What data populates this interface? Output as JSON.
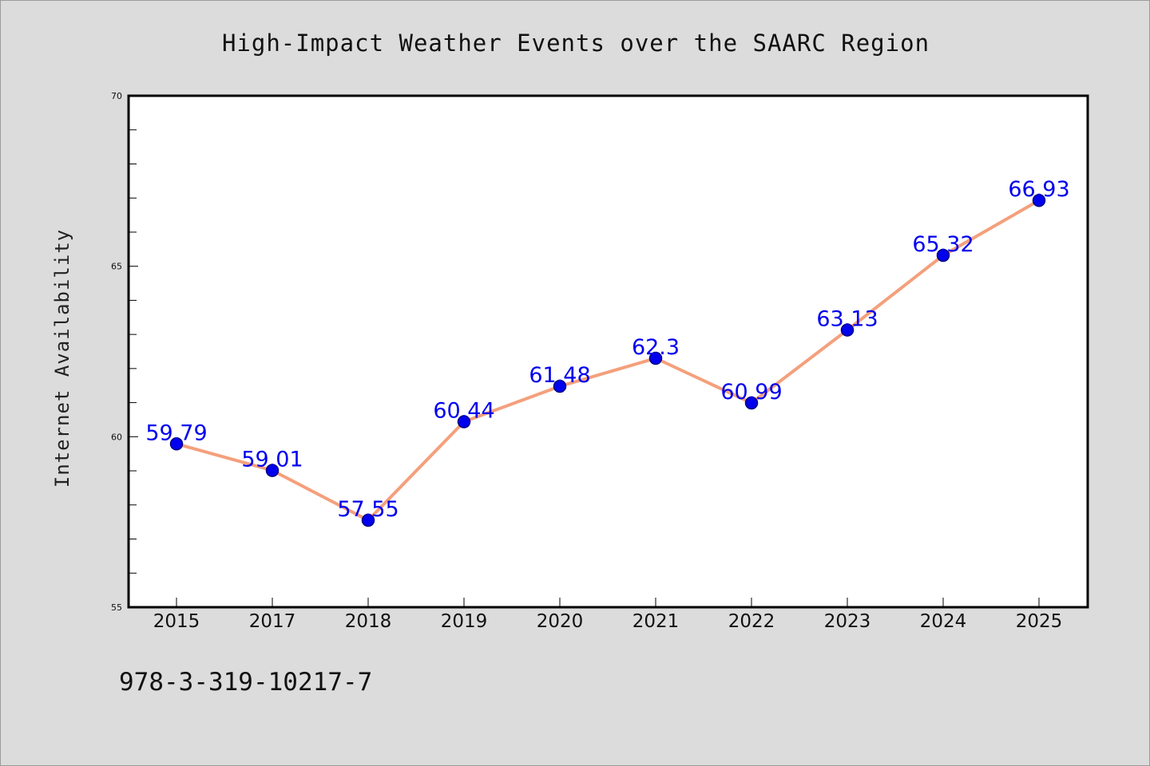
{
  "chart_data": {
    "type": "line",
    "title": "High-Impact Weather Events over the SAARC Region",
    "xlabel": "",
    "ylabel": "Internet Availability",
    "categories": [
      "2015",
      "2017",
      "2018",
      "2019",
      "2020",
      "2021",
      "2022",
      "2023",
      "2024",
      "2025"
    ],
    "series": [
      {
        "values": [
          59.79,
          59.01,
          57.55,
          60.44,
          61.48,
          62.3,
          60.99,
          63.13,
          65.32,
          66.93
        ],
        "data_labels": [
          "59.79",
          "59.01",
          "57.55",
          "60.44",
          "61.48",
          "62.3",
          "60.99",
          "63.13",
          "65.32",
          "66.93"
        ]
      }
    ],
    "ylim": [
      55,
      70
    ],
    "yticks": [
      "55",
      "60",
      "65",
      "70"
    ],
    "grid": false,
    "legend": "none",
    "colors": {
      "line": "#f4a07c",
      "marker": "#0000ee",
      "marker_edge": "#000080",
      "data_label": "#0000ee",
      "background": "#dcdcdc",
      "plot_background": "#ffffff"
    }
  },
  "footer": {
    "code": "978-3-319-10217-7"
  }
}
